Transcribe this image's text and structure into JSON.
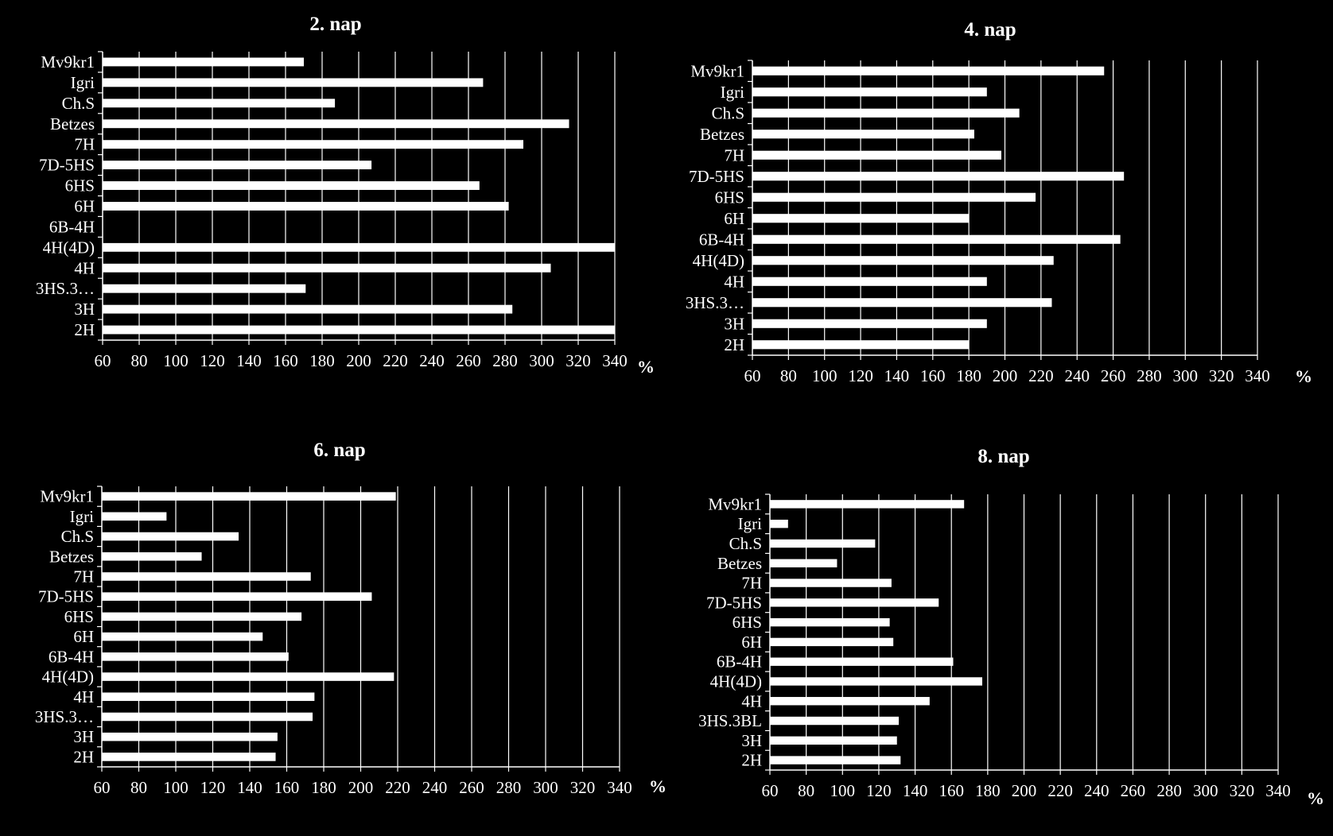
{
  "chart_data": [
    {
      "type": "bar",
      "orientation": "horizontal",
      "title": "2. nap",
      "unit_label": "%",
      "categories": [
        "Mv9kr1",
        "Igri",
        "Ch.S",
        "Betzes",
        "7H",
        "7D-5HS",
        "6HS",
        "6H",
        "6B-4H",
        "4H(4D)",
        "4H",
        "3HS.3…",
        "3H",
        "2H"
      ],
      "values": [
        170,
        268,
        187,
        315,
        290,
        207,
        266,
        282,
        null,
        340,
        305,
        171,
        284,
        340
      ],
      "xlim": [
        60,
        340
      ],
      "xticks": [
        60,
        80,
        100,
        120,
        140,
        160,
        180,
        200,
        220,
        240,
        260,
        280,
        300,
        320,
        340
      ],
      "grid": true,
      "colors": {
        "bar": "#ffffff",
        "background": "#000000",
        "text": "#ffffff"
      }
    },
    {
      "type": "bar",
      "orientation": "horizontal",
      "title": "4. nap",
      "unit_label": "%",
      "categories": [
        "Mv9kr1",
        "Igri",
        "Ch.S",
        "Betzes",
        "7H",
        "7D-5HS",
        "6HS",
        "6H",
        "6B-4H",
        "4H(4D)",
        "4H",
        "3HS.3…",
        "3H",
        "2H"
      ],
      "values": [
        255,
        190,
        208,
        183,
        198,
        266,
        217,
        180,
        264,
        227,
        190,
        226,
        190,
        180
      ],
      "xlim": [
        60,
        340
      ],
      "xticks": [
        60,
        80,
        100,
        120,
        140,
        160,
        180,
        200,
        220,
        240,
        260,
        280,
        300,
        320,
        340
      ],
      "grid": true,
      "colors": {
        "bar": "#ffffff",
        "background": "#000000",
        "text": "#ffffff"
      }
    },
    {
      "type": "bar",
      "orientation": "horizontal",
      "title": "6. nap",
      "unit_label": "%",
      "categories": [
        "Mv9kr1",
        "Igri",
        "Ch.S",
        "Betzes",
        "7H",
        "7D-5HS",
        "6HS",
        "6H",
        "6B-4H",
        "4H(4D)",
        "4H",
        "3HS.3…",
        "3H",
        "2H"
      ],
      "values": [
        219,
        95,
        134,
        114,
        173,
        206,
        168,
        147,
        161,
        218,
        175,
        174,
        155,
        154
      ],
      "xlim": [
        60,
        340
      ],
      "xticks": [
        60,
        80,
        100,
        120,
        140,
        160,
        180,
        200,
        220,
        240,
        260,
        280,
        300,
        320,
        340
      ],
      "grid": true,
      "colors": {
        "bar": "#ffffff",
        "background": "#000000",
        "text": "#ffffff"
      }
    },
    {
      "type": "bar",
      "orientation": "horizontal",
      "title": "8. nap",
      "unit_label": "%",
      "categories": [
        "Mv9kr1",
        "Igri",
        "Ch.S",
        "Betzes",
        "7H",
        "7D-5HS",
        "6HS",
        "6H",
        "6B-4H",
        "4H(4D)",
        "4H",
        "3HS.3BL",
        "3H",
        "2H"
      ],
      "values": [
        167,
        70,
        118,
        97,
        127,
        153,
        126,
        128,
        161,
        177,
        148,
        131,
        130,
        132
      ],
      "xlim": [
        60,
        340
      ],
      "xticks": [
        60,
        80,
        100,
        120,
        140,
        160,
        180,
        200,
        220,
        240,
        260,
        280,
        300,
        320,
        340
      ],
      "grid": true,
      "colors": {
        "bar": "#ffffff",
        "background": "#000000",
        "text": "#ffffff"
      }
    }
  ]
}
